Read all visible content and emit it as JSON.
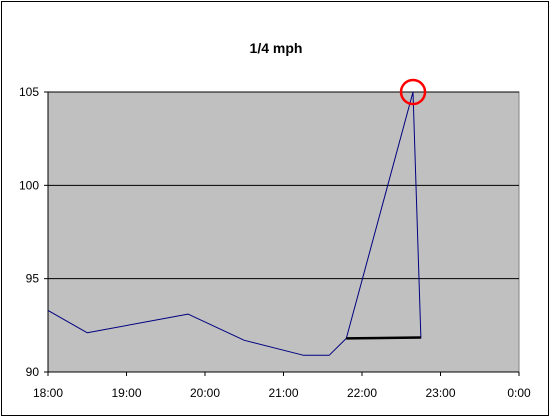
{
  "chart_data": {
    "type": "line",
    "title": "1/4 mph",
    "xlabel": "",
    "ylabel": "",
    "x_ticks": [
      "18:00",
      "19:00",
      "20:00",
      "21:00",
      "22:00",
      "23:00",
      "0:00"
    ],
    "y_ticks": [
      90,
      95,
      100,
      105
    ],
    "ylim": [
      90,
      105
    ],
    "xlim": [
      "18:00",
      "0:00"
    ],
    "grid": "horizontal major",
    "legend": "none",
    "plot_background": "#c0c0c0",
    "series": [
      {
        "color": "#000080",
        "x": [
          "18:00",
          "18:30",
          "19:47",
          "20:30",
          "21:15",
          "21:35",
          "21:48",
          "22:39",
          "22:45"
        ],
        "y": [
          93.3,
          92.1,
          93.1,
          91.7,
          90.9,
          90.9,
          91.8,
          105.0,
          91.8
        ]
      }
    ],
    "annotations": [
      {
        "type": "circle",
        "color": "#ff0000",
        "x": "22:39",
        "y": 105.0
      },
      {
        "type": "segment",
        "color": "#000000",
        "x": [
          "21:48",
          "22:45"
        ],
        "y": [
          91.8,
          91.85
        ]
      }
    ]
  }
}
